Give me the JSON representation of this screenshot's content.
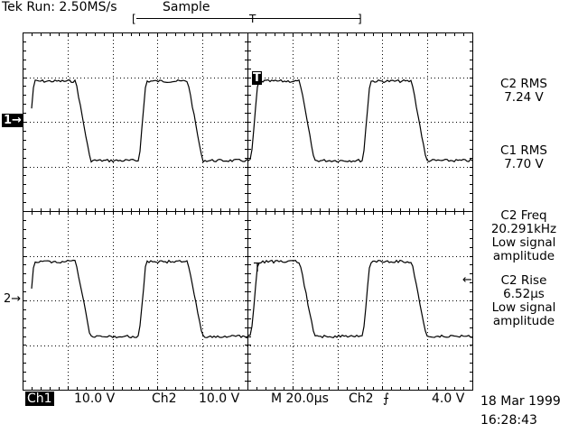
{
  "header": {
    "status": "Tek Run: 2.50MS/s",
    "mode": "Sample",
    "record_bracket_left": "[",
    "record_trigger_marker": "T",
    "record_bracket_right": "]"
  },
  "markers": {
    "ch1_ground": "1→",
    "ch2_ground": "2→",
    "trigger_position": "T",
    "ch1_trigger_point": "T",
    "trigger_level": "←"
  },
  "measurements": [
    {
      "title": "C2 RMS",
      "value": "7.24 V"
    },
    {
      "title": "C1 RMS",
      "value": "7.70 V"
    },
    {
      "title": "C2 Freq",
      "value": "20.291kHz",
      "note1": "Low signal",
      "note2": "amplitude"
    },
    {
      "title": "C2 Rise",
      "value": "6.52µs",
      "note1": "Low signal",
      "note2": "amplitude"
    }
  ],
  "footer": {
    "ch1_label": "Ch1",
    "ch1_scale": "10.0 V",
    "ch2_label": "Ch2",
    "ch2_scale": "10.0 V",
    "timebase": "M 20.0µs",
    "trigger_source": "Ch2",
    "trigger_slope": "⨍",
    "trigger_level": "4.0 V",
    "date": "18 Mar 1999",
    "time": "16:28:43"
  },
  "colors": {
    "trace": "#000000",
    "grid": "#000000",
    "background": "#ffffff"
  }
}
